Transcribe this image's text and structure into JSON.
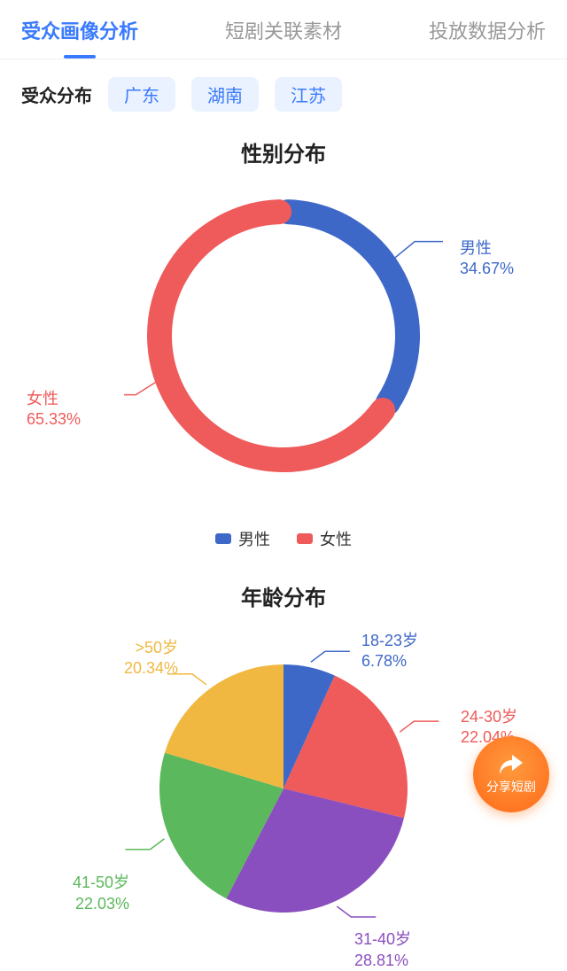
{
  "tabs": [
    {
      "label": "受众画像分析",
      "active": true
    },
    {
      "label": "短剧关联素材",
      "active": false
    },
    {
      "label": "投放数据分析",
      "active": false
    }
  ],
  "filter": {
    "label": "受众分布",
    "chips": [
      "广东",
      "湖南",
      "江苏"
    ]
  },
  "gender_chart": {
    "type": "donut",
    "title": "性别分布",
    "series": [
      {
        "name": "男性",
        "value": 34.67,
        "percent_label": "34.67%",
        "color": "#3e68c8"
      },
      {
        "name": "女性",
        "value": 65.33,
        "percent_label": "65.33%",
        "color": "#ef5a5a"
      }
    ],
    "ring_thickness": 28,
    "radius": 140,
    "gap_deg": 4,
    "background_color": "#ffffff",
    "legend": [
      {
        "label": "男性",
        "color": "#3e68c8"
      },
      {
        "label": "女性",
        "color": "#ef5a5a"
      }
    ]
  },
  "age_chart": {
    "type": "pie",
    "title": "年龄分布",
    "radius": 140,
    "background_color": "#ffffff",
    "slices": [
      {
        "name": "18-23岁",
        "value": 6.78,
        "percent_label": "6.78%",
        "color": "#3e68c8"
      },
      {
        "name": "24-30岁",
        "value": 22.04,
        "percent_label": "22.04%",
        "color": "#ef5a5a"
      },
      {
        "name": "31-40岁",
        "value": 28.81,
        "percent_label": "28.81%",
        "color": "#8a4fbf"
      },
      {
        "name": "41-50岁",
        "value": 22.03,
        "percent_label": "22.03%",
        "color": "#5cb85c"
      },
      {
        "name": ">50岁",
        "value": 20.34,
        "percent_label": "20.34%",
        "color": "#f0b840"
      }
    ]
  },
  "share_button": {
    "label": "分享短剧"
  }
}
